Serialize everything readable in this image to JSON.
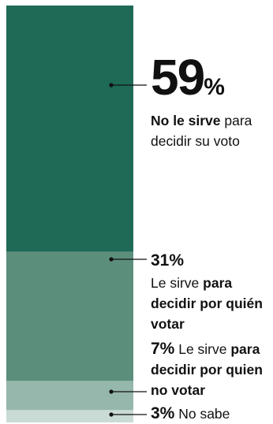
{
  "chart_data": {
    "type": "stacked-bar",
    "segments": [
      {
        "value": 59,
        "value_label": "59",
        "sign": "%",
        "text_bold": "No le sirve",
        "text_rest": " para decidir su voto",
        "color": "#1e6a56"
      },
      {
        "value": 31,
        "value_label": "31%",
        "text_plain": "Le sirve ",
        "text_bold": "para decidir por quién votar",
        "color": "#5c8e7c"
      },
      {
        "value": 7,
        "value_label": "7%",
        "text_plain": " Le sirve ",
        "text_bold": "para decidir por quien no votar",
        "color": "#96b7ab"
      },
      {
        "value": 3,
        "value_label": "3%",
        "text_plain": " No sabe",
        "color": "#c9dbd4"
      }
    ]
  }
}
